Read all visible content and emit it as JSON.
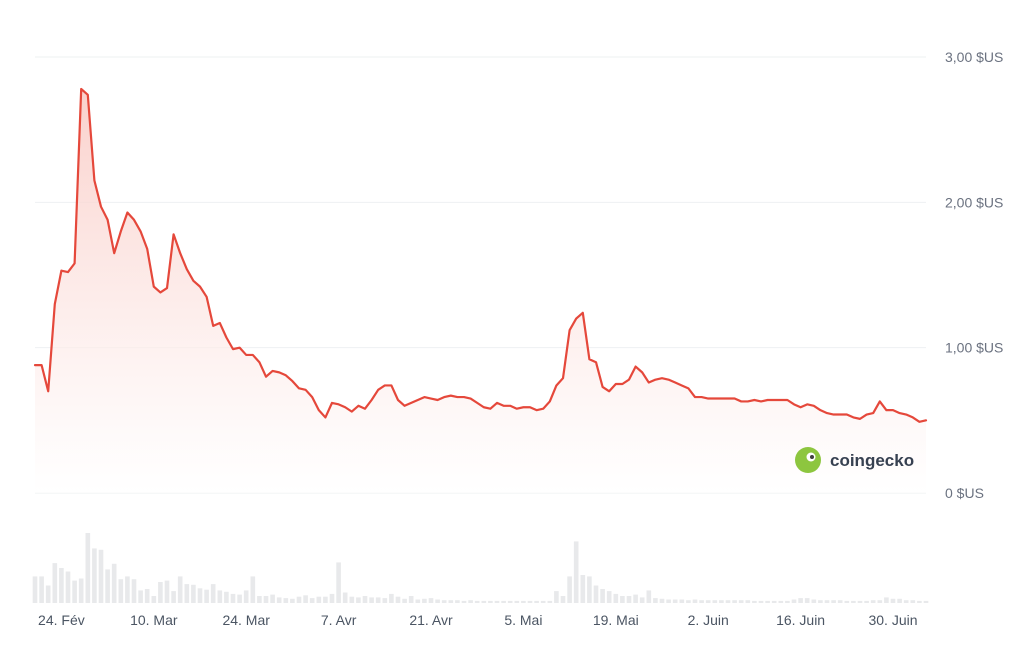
{
  "colors": {
    "line": "#e5483b",
    "area_top": "#f9c9c3",
    "grid": "#eef0f2",
    "volume_bar": "#e8e9eb",
    "tick_text": "#6b7280",
    "logo_green": "#8dc63f"
  },
  "watermark": {
    "text": "coingecko",
    "icon": "gecko-logo-icon"
  },
  "chart_data": {
    "type": "area",
    "title": "",
    "xlabel": "",
    "ylabel": "",
    "ylim": [
      0,
      3
    ],
    "grid": true,
    "legend": "none",
    "y_ticks": [
      {
        "value": 3,
        "label": "3,00 $US"
      },
      {
        "value": 2,
        "label": "2,00 $US"
      },
      {
        "value": 1,
        "label": "1,00 $US"
      },
      {
        "value": 0,
        "label": "0 $US"
      }
    ],
    "x_ticks": [
      {
        "index": 4,
        "label": "24. Fév"
      },
      {
        "index": 18,
        "label": "10. Mar"
      },
      {
        "index": 32,
        "label": "24. Mar"
      },
      {
        "index": 46,
        "label": "7. Avr"
      },
      {
        "index": 60,
        "label": "21. Avr"
      },
      {
        "index": 74,
        "label": "5. Mai"
      },
      {
        "index": 88,
        "label": "19. Mai"
      },
      {
        "index": 102,
        "label": "2. Juin"
      },
      {
        "index": 116,
        "label": "16. Juin"
      },
      {
        "index": 130,
        "label": "30. Juin"
      }
    ],
    "price": [
      0.88,
      0.88,
      0.7,
      1.3,
      1.53,
      1.52,
      1.58,
      2.78,
      2.74,
      2.15,
      1.97,
      1.88,
      1.65,
      1.8,
      1.93,
      1.88,
      1.8,
      1.68,
      1.42,
      1.38,
      1.41,
      1.78,
      1.65,
      1.54,
      1.46,
      1.42,
      1.35,
      1.15,
      1.17,
      1.07,
      0.99,
      1.0,
      0.95,
      0.95,
      0.9,
      0.8,
      0.84,
      0.83,
      0.81,
      0.77,
      0.72,
      0.71,
      0.66,
      0.57,
      0.52,
      0.62,
      0.61,
      0.59,
      0.56,
      0.6,
      0.58,
      0.64,
      0.71,
      0.74,
      0.74,
      0.64,
      0.6,
      0.62,
      0.64,
      0.66,
      0.65,
      0.64,
      0.66,
      0.67,
      0.66,
      0.66,
      0.65,
      0.62,
      0.59,
      0.58,
      0.62,
      0.6,
      0.6,
      0.58,
      0.59,
      0.59,
      0.57,
      0.58,
      0.63,
      0.74,
      0.79,
      1.12,
      1.2,
      1.24,
      0.92,
      0.9,
      0.73,
      0.7,
      0.75,
      0.75,
      0.78,
      0.87,
      0.83,
      0.76,
      0.78,
      0.79,
      0.78,
      0.76,
      0.74,
      0.72,
      0.66,
      0.66,
      0.65,
      0.65,
      0.65,
      0.65,
      0.65,
      0.63,
      0.63,
      0.64,
      0.63,
      0.64,
      0.64,
      0.64,
      0.64,
      0.61,
      0.59,
      0.61,
      0.6,
      0.57,
      0.55,
      0.54,
      0.54,
      0.54,
      0.52,
      0.51,
      0.54,
      0.55,
      0.63,
      0.57,
      0.57,
      0.55,
      0.54,
      0.52,
      0.49,
      0.5
    ],
    "volume": [
      0.38,
      0.38,
      0.25,
      0.57,
      0.5,
      0.45,
      0.32,
      0.35,
      1.0,
      0.78,
      0.76,
      0.48,
      0.56,
      0.34,
      0.38,
      0.34,
      0.18,
      0.2,
      0.1,
      0.3,
      0.32,
      0.17,
      0.38,
      0.27,
      0.26,
      0.21,
      0.19,
      0.27,
      0.18,
      0.16,
      0.13,
      0.12,
      0.18,
      0.38,
      0.1,
      0.1,
      0.12,
      0.08,
      0.07,
      0.06,
      0.09,
      0.11,
      0.07,
      0.09,
      0.09,
      0.13,
      0.58,
      0.15,
      0.09,
      0.08,
      0.1,
      0.08,
      0.08,
      0.07,
      0.13,
      0.09,
      0.06,
      0.1,
      0.05,
      0.06,
      0.07,
      0.05,
      0.04,
      0.04,
      0.04,
      0.03,
      0.04,
      0.03,
      0.03,
      0.03,
      0.03,
      0.03,
      0.03,
      0.03,
      0.03,
      0.03,
      0.03,
      0.03,
      0.03,
      0.17,
      0.1,
      0.38,
      0.88,
      0.4,
      0.38,
      0.25,
      0.2,
      0.17,
      0.13,
      0.1,
      0.1,
      0.12,
      0.08,
      0.18,
      0.07,
      0.06,
      0.05,
      0.05,
      0.05,
      0.04,
      0.05,
      0.04,
      0.04,
      0.04,
      0.04,
      0.04,
      0.04,
      0.04,
      0.04,
      0.03,
      0.03,
      0.03,
      0.03,
      0.03,
      0.03,
      0.05,
      0.07,
      0.07,
      0.05,
      0.04,
      0.04,
      0.04,
      0.04,
      0.03,
      0.03,
      0.03,
      0.03,
      0.04,
      0.04,
      0.08,
      0.06,
      0.06,
      0.04,
      0.04,
      0.03,
      0.03
    ]
  }
}
